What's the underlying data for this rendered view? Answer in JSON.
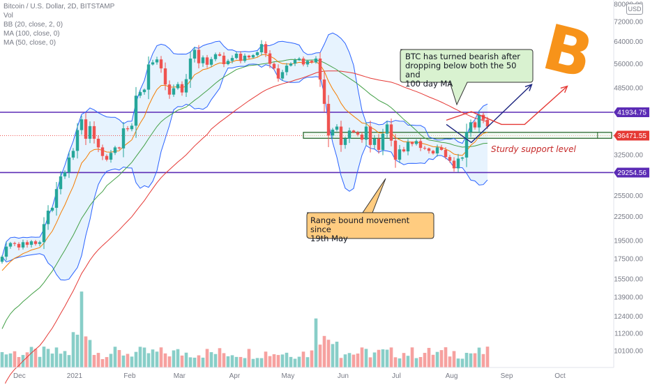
{
  "header": {
    "title": "Bitcoin / U.S. Dollar, 2D, BITSTAMP",
    "indicators": [
      "Vol",
      "BB (20, close, 2, 0)",
      "MA (100, close, 0)",
      "MA (50, close, 0)"
    ]
  },
  "currency_button": "USD",
  "price_tags": [
    {
      "label": "41934.75",
      "color": "#5b2bb5"
    },
    {
      "label": "36471.55",
      "color": "#e53935"
    },
    {
      "label": "29254.56",
      "color": "#5b2bb5"
    }
  ],
  "annotations": {
    "bearish_note": "BTC has turned bearish after dropping below both the 50 and 100 day MA",
    "bearish_lines": [
      "BTC has turned bearish after",
      "dropping below both the 50 and",
      "100 day MA"
    ],
    "range_note": "Range bound movement since 19th May",
    "range_lines": [
      "Range bound movement since",
      "19th May"
    ],
    "support_label": "Sturdy support level",
    "logo_letter": "B"
  },
  "colors": {
    "up": "#26a69a",
    "down": "#ef5350",
    "bb": "#2962ff",
    "ma100": "#e53935",
    "ma50": "#43a047",
    "ema_orange": "#f57c00",
    "levels": "#5b2bb5",
    "bitcoin": "#f7931a"
  },
  "chart_data": {
    "type": "candlestick",
    "title": "Bitcoin / U.S. Dollar, 2D, BITSTAMP",
    "y_scale": "log",
    "ylim": [
      9600,
      82000
    ],
    "y_ticks": [
      80000,
      72000,
      64000,
      56000,
      48500,
      41934.75,
      36471.55,
      32500,
      29254.56,
      25500,
      22500,
      19500,
      17500,
      15500,
      13900,
      12400,
      11200,
      10100
    ],
    "x_ticks": [
      "Dec",
      "2021",
      "Feb",
      "Mar",
      "Apr",
      "May",
      "Jun",
      "Jul",
      "Aug",
      "Sep",
      "Oct"
    ],
    "x_range": [
      "2020-11-24",
      "2021-10-31"
    ],
    "date_ticks": [
      "2020-12-01",
      "2021-01-01",
      "2021-02-01",
      "2021-03-01",
      "2021-04-01",
      "2021-05-01",
      "2021-06-01",
      "2021-07-01",
      "2021-08-01",
      "2021-09-01",
      "2021-10-01"
    ],
    "closes": [
      17700,
      18800,
      19200,
      19100,
      18700,
      19300,
      19000,
      19400,
      19100,
      19300,
      21500,
      23300,
      23700,
      26500,
      28600,
      29300,
      32000,
      33300,
      37700,
      40200,
      35800,
      38600,
      35800,
      34000,
      32300,
      31600,
      32900,
      34000,
      33800,
      38100,
      37900,
      38700,
      46300,
      47300,
      48000,
      55800,
      56500,
      57500,
      54500,
      49500,
      46600,
      48400,
      49600,
      47200,
      51100,
      57800,
      60900,
      56200,
      58200,
      55700,
      57600,
      59300,
      58800,
      55900,
      57000,
      58000,
      59500,
      57000,
      58800,
      58200,
      59000,
      60000,
      63000,
      59600,
      56000,
      54500,
      51300,
      53300,
      55400,
      56100,
      57300,
      57800,
      55800,
      57000,
      56500,
      57800,
      51000,
      44100,
      36500,
      37800,
      38500,
      34500,
      35800,
      37600,
      37200,
      36700,
      35600,
      38500,
      34500,
      35800,
      33500,
      36900,
      39000,
      35400,
      31600,
      33600,
      33200,
      35100,
      34700,
      35300,
      33900,
      33800,
      33300,
      32800,
      34000,
      33500,
      32100,
      31400,
      30000,
      31800,
      32000,
      37300,
      39500,
      38300,
      41300,
      40100,
      38500
    ],
    "level_lines": [
      41934.75,
      29254.56
    ],
    "support_zone": [
      35900,
      37200
    ],
    "projection_paths": [
      {
        "color": "#1a237e",
        "points": [
          [
            "2021-08-02",
            39000
          ],
          [
            "2021-08-16",
            35000
          ],
          [
            "2021-09-19",
            49500
          ]
        ]
      },
      {
        "color": "#e53935",
        "points": [
          [
            "2021-08-02",
            40000
          ],
          [
            "2021-08-16",
            42100
          ],
          [
            "2021-09-02",
            39000
          ],
          [
            "2021-09-15",
            39000
          ],
          [
            "2021-10-09",
            49000
          ]
        ]
      }
    ]
  }
}
